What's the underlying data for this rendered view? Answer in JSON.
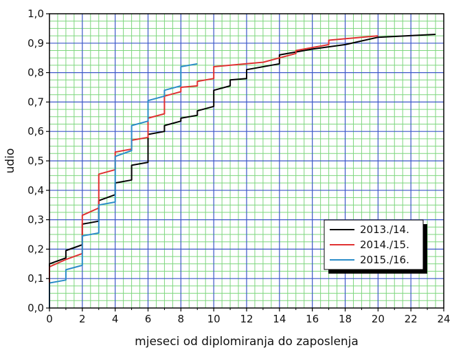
{
  "chart_data": {
    "type": "line",
    "step": true,
    "xlabel": "mjeseci od diplomiranja do zaposlenja",
    "ylabel": "udio",
    "xlim": [
      0,
      24
    ],
    "ylim": [
      0,
      1.0
    ],
    "x_major_ticks": [
      0,
      2,
      4,
      6,
      8,
      10,
      12,
      14,
      16,
      18,
      20,
      22,
      24
    ],
    "x_tick_labels": [
      "0",
      "2",
      "4",
      "6",
      "8",
      "10",
      "12",
      "14",
      "16",
      "18",
      "20",
      "22",
      "24"
    ],
    "y_major_ticks": [
      0.0,
      0.1,
      0.2,
      0.3,
      0.4,
      0.5,
      0.6,
      0.7,
      0.8,
      0.9,
      1.0
    ],
    "y_tick_labels": [
      "0,0",
      "0,1",
      "0,2",
      "0,3",
      "0,4",
      "0,5",
      "0,6",
      "0,7",
      "0,8",
      "0,9",
      "1,0"
    ],
    "grid": true,
    "minor_grid_color": "#7dd67d",
    "major_grid_color": "#3a55c8",
    "legend_position": "lower-right",
    "series": [
      {
        "name": "2013./14.",
        "color": "#000000",
        "points": [
          [
            0,
            0.0
          ],
          [
            0,
            0.15
          ],
          [
            1,
            0.17
          ],
          [
            1,
            0.195
          ],
          [
            2,
            0.215
          ],
          [
            2,
            0.285
          ],
          [
            3,
            0.295
          ],
          [
            3,
            0.365
          ],
          [
            4,
            0.385
          ],
          [
            4,
            0.425
          ],
          [
            5,
            0.435
          ],
          [
            5,
            0.485
          ],
          [
            6,
            0.495
          ],
          [
            6,
            0.59
          ],
          [
            7,
            0.6
          ],
          [
            7,
            0.62
          ],
          [
            8,
            0.635
          ],
          [
            8,
            0.645
          ],
          [
            9,
            0.655
          ],
          [
            9,
            0.67
          ],
          [
            10,
            0.685
          ],
          [
            10,
            0.74
          ],
          [
            11,
            0.755
          ],
          [
            11,
            0.775
          ],
          [
            12,
            0.78
          ],
          [
            12,
            0.81
          ],
          [
            14,
            0.83
          ],
          [
            14,
            0.86
          ],
          [
            16,
            0.88
          ],
          [
            18,
            0.895
          ],
          [
            20,
            0.92
          ],
          [
            23.5,
            0.93
          ]
        ]
      },
      {
        "name": "2014./15.",
        "color": "#e03030",
        "points": [
          [
            0,
            0.0
          ],
          [
            0,
            0.14
          ],
          [
            1,
            0.165
          ],
          [
            2,
            0.185
          ],
          [
            2,
            0.315
          ],
          [
            3,
            0.34
          ],
          [
            3,
            0.455
          ],
          [
            4,
            0.47
          ],
          [
            4,
            0.53
          ],
          [
            5,
            0.54
          ],
          [
            5,
            0.57
          ],
          [
            6,
            0.58
          ],
          [
            6,
            0.645
          ],
          [
            7,
            0.66
          ],
          [
            7,
            0.72
          ],
          [
            8,
            0.735
          ],
          [
            8,
            0.75
          ],
          [
            9,
            0.755
          ],
          [
            9,
            0.77
          ],
          [
            10,
            0.78
          ],
          [
            10,
            0.82
          ],
          [
            13,
            0.835
          ],
          [
            14,
            0.85
          ],
          [
            15,
            0.865
          ],
          [
            15,
            0.875
          ],
          [
            17,
            0.895
          ],
          [
            17,
            0.91
          ],
          [
            20,
            0.925
          ]
        ]
      },
      {
        "name": "2015./16.",
        "color": "#2a8cc8",
        "points": [
          [
            0,
            0.0
          ],
          [
            0,
            0.085
          ],
          [
            1,
            0.095
          ],
          [
            1,
            0.13
          ],
          [
            2,
            0.145
          ],
          [
            2,
            0.245
          ],
          [
            3,
            0.255
          ],
          [
            3,
            0.35
          ],
          [
            4,
            0.36
          ],
          [
            4,
            0.515
          ],
          [
            5,
            0.535
          ],
          [
            5,
            0.62
          ],
          [
            6,
            0.635
          ],
          [
            6,
            0.705
          ],
          [
            7,
            0.72
          ],
          [
            7,
            0.74
          ],
          [
            8,
            0.755
          ],
          [
            8,
            0.82
          ],
          [
            9,
            0.83
          ]
        ]
      }
    ]
  }
}
